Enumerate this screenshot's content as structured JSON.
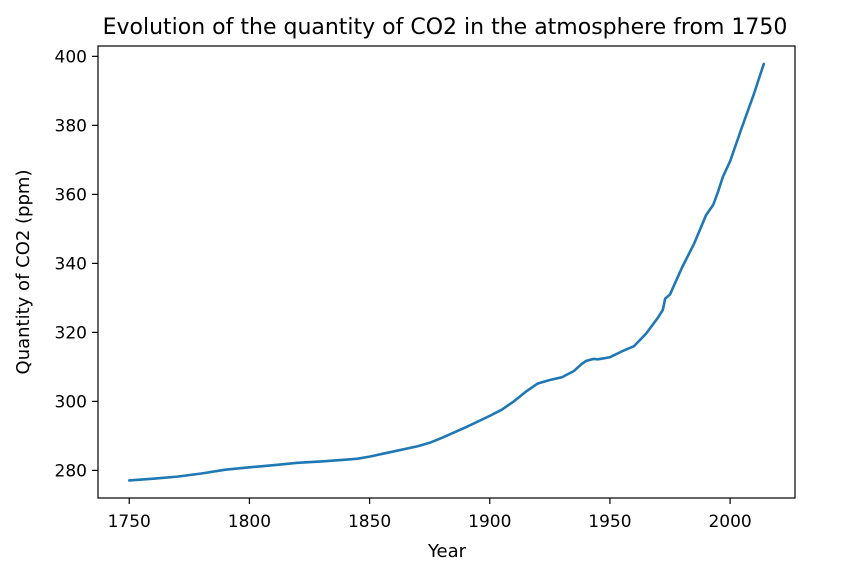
{
  "chart_data": {
    "type": "line",
    "title": "Evolution of the quantity of CO2 in the atmosphere from 1750",
    "xlabel": "Year",
    "ylabel": "Quantity of CO2 (ppm)",
    "xlim": [
      1737,
      2027
    ],
    "ylim": [
      272,
      403
    ],
    "xticks": [
      1750,
      1800,
      1850,
      1900,
      1950,
      2000
    ],
    "yticks": [
      280,
      300,
      320,
      340,
      360,
      380,
      400
    ],
    "grid": false,
    "series": [
      {
        "color": "#1f77b4",
        "x": [
          1750,
          1760,
          1770,
          1780,
          1790,
          1800,
          1810,
          1820,
          1830,
          1840,
          1845,
          1850,
          1860,
          1870,
          1875,
          1880,
          1890,
          1900,
          1905,
          1910,
          1915,
          1920,
          1925,
          1930,
          1935,
          1938,
          1940,
          1943,
          1945,
          1950,
          1955,
          1960,
          1965,
          1970,
          1972,
          1973,
          1975,
          1980,
          1985,
          1990,
          1993,
          1995,
          1997,
          2000,
          2005,
          2010,
          2014
        ],
        "y": [
          277.1,
          277.6,
          278.2,
          279.1,
          280.2,
          280.9,
          281.5,
          282.2,
          282.6,
          283.1,
          283.4,
          284.0,
          285.5,
          287.0,
          288.0,
          289.4,
          292.5,
          295.8,
          297.6,
          300.0,
          302.8,
          305.2,
          306.2,
          307.0,
          308.8,
          310.7,
          311.7,
          312.3,
          312.2,
          312.8,
          314.5,
          316.0,
          319.6,
          324.3,
          326.5,
          329.8,
          331.0,
          338.8,
          345.7,
          354.0,
          357.0,
          360.8,
          365.1,
          369.6,
          379.6,
          389.3,
          397.8
        ]
      }
    ]
  }
}
